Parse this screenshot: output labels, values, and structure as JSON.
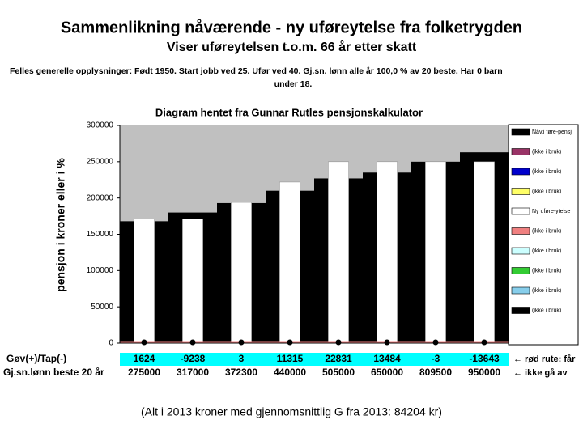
{
  "chart_data": {
    "type": "bar",
    "title": "Sammenlikning nåværende - ny uføreytelse fra folketrygden",
    "subtitle": "Viser uføreytelsen t.o.m. 66 år etter skatt",
    "info": [
      "Felles generelle opplysninger: Født 1950. Start jobb ved 25. Ufør ved 40. Gj.sn. lønn alle år 100,0 % av 20 beste. Har 0 barn",
      "under 18."
    ],
    "chart_title": "Diagram hentet fra Gunnar Rutles pensjonskalkulator",
    "y_label": "pensjon i kroner eller i %",
    "categories": [
      "275000",
      "317000",
      "372300",
      "440000",
      "505000",
      "650000",
      "809500",
      "950000"
    ],
    "categories_label": "Gj.sn.lønn beste 20 år",
    "categories_note": "← ikke gå av",
    "gain_loss_label": "Gøv(+)/Tap(-)",
    "gain_loss": [
      1624,
      -9238,
      3,
      11315,
      22831,
      13484,
      -3,
      -13643
    ],
    "gain_loss_note": "← rød rute: får",
    "footer": "(Alt i 2013 kroner med gjennomsnittlig G fra 2013: 84204 kr)",
    "series": [
      {
        "name": "Nåv.i føre-pensj",
        "color": "#000000",
        "values": [
          168000,
          180000,
          193000,
          210000,
          227000,
          235000,
          250000,
          263000
        ]
      },
      {
        "name": "Ny uføre-ytelse",
        "color": "#ffffff",
        "values": [
          171000,
          171000,
          194000,
          222000,
          250000,
          250000,
          250000,
          250000
        ]
      },
      {
        "name": "(ikke i bruk)",
        "color": "#f08080",
        "marker": "circle",
        "values": [
          0,
          0,
          0,
          0,
          0,
          0,
          0,
          0
        ]
      }
    ],
    "legend_unused": [
      {
        "name": "(ikke i bruk)",
        "color": "#993366"
      },
      {
        "name": "(ikke i bruk)",
        "color": "#0000cc"
      },
      {
        "name": "(ikke i bruk)",
        "color": "#ffff66"
      },
      {
        "name": "(ikke i bruk)",
        "color": "#f08080"
      },
      {
        "name": "(ikke i bruk)",
        "color": "#ccffff"
      },
      {
        "name": "(ikke i bruk)",
        "color": "#33cc33"
      },
      {
        "name": "(ikke i bruk)",
        "color": "#87ceeb"
      },
      {
        "name": "(ikke i bruk)",
        "color": "#000000"
      }
    ],
    "ylim": [
      0,
      300000
    ],
    "yticks": [
      0,
      50000,
      100000,
      150000,
      200000,
      250000,
      300000
    ],
    "plot_background": "#c0c0c0"
  }
}
